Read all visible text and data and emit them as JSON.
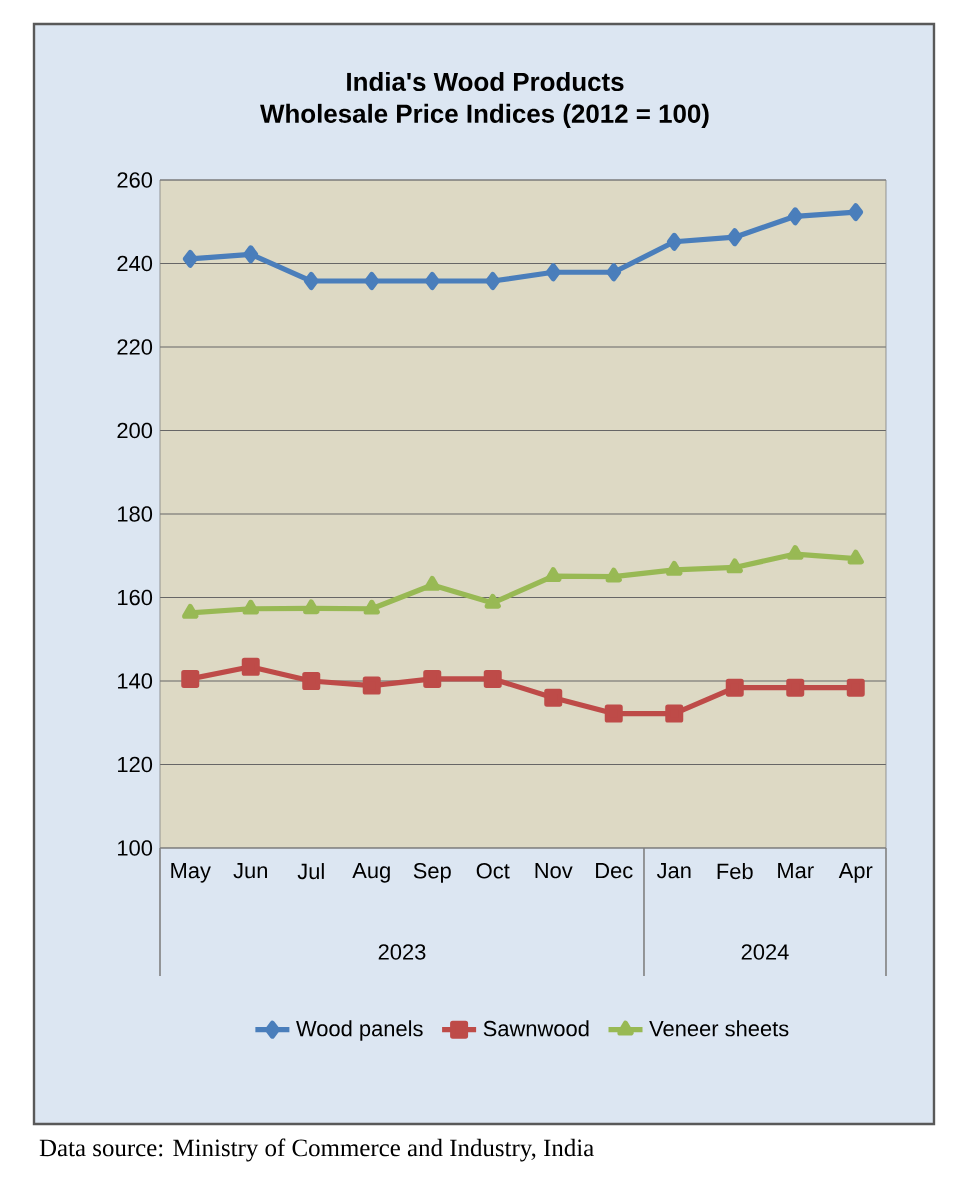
{
  "chart_data": {
    "type": "line",
    "title": "India's Wood Products\nWholesale Price Indices (2012 = 100)",
    "categories": [
      "May",
      "Jun",
      "Jul",
      "Aug",
      "Sep",
      "Oct",
      "Nov",
      "Dec",
      "Jan",
      "Feb",
      "Mar",
      "Apr"
    ],
    "series": [
      {
        "name": "Wood panels",
        "color": "#4a7ebb",
        "marker": "diamond",
        "values": [
          241.1,
          242.2,
          235.8,
          235.8,
          235.8,
          235.8,
          237.9,
          237.9,
          245.2,
          246.3,
          251.3,
          252.3
        ]
      },
      {
        "name": "Sawnwood",
        "color": "#be4b48",
        "marker": "square",
        "values": [
          140.5,
          143.4,
          140.0,
          138.9,
          140.5,
          140.5,
          136.0,
          132.2,
          132.2,
          138.4,
          138.4,
          138.4
        ]
      },
      {
        "name": "Veneer sheets",
        "color": "#98b954",
        "marker": "triangle",
        "values": [
          156.3,
          157.3,
          157.4,
          157.3,
          163.0,
          158.7,
          165.1,
          165.0,
          166.6,
          167.2,
          170.4,
          169.3
        ]
      }
    ],
    "ylim": [
      100,
      260
    ],
    "yticks": [
      100,
      120,
      140,
      160,
      180,
      200,
      220,
      240,
      260
    ],
    "grid": "y",
    "legend": "bottom",
    "line_style": "solid",
    "annotations": [
      "2023",
      "2024",
      "Data source: Ministry of Commerce and Industry, India"
    ]
  }
}
